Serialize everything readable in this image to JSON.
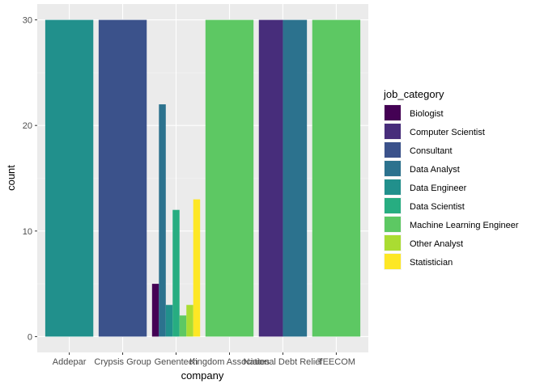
{
  "chart_data": {
    "type": "bar",
    "position": "dodge",
    "xlabel": "company",
    "ylabel": "count",
    "ylim": [
      0,
      30
    ],
    "yticks": [
      0,
      10,
      20,
      30
    ],
    "categories": [
      "Addepar",
      "Crypsis Group",
      "Genentech",
      "Kingdom Associates",
      "National Debt Relief",
      "TEECOM"
    ],
    "legend": {
      "title": "job_category",
      "placement": "right",
      "entries": [
        {
          "name": "Biologist",
          "color": "#440154"
        },
        {
          "name": "Computer Scientist",
          "color": "#472D7B"
        },
        {
          "name": "Consultant",
          "color": "#3B528B"
        },
        {
          "name": "Data Analyst",
          "color": "#2C728E"
        },
        {
          "name": "Data Engineer",
          "color": "#21908C"
        },
        {
          "name": "Data Scientist",
          "color": "#27AD81"
        },
        {
          "name": "Machine Learning Engineer",
          "color": "#5DC863"
        },
        {
          "name": "Other Analyst",
          "color": "#AADC32"
        },
        {
          "name": "Statistician",
          "color": "#FDE725"
        }
      ]
    },
    "bars": [
      {
        "company": "Addepar",
        "job_category": "Data Engineer",
        "count": 30
      },
      {
        "company": "Crypsis Group",
        "job_category": "Consultant",
        "count": 30
      },
      {
        "company": "Genentech",
        "job_category": "Biologist",
        "count": 5
      },
      {
        "company": "Genentech",
        "job_category": "Data Analyst",
        "count": 22
      },
      {
        "company": "Genentech",
        "job_category": "Data Engineer",
        "count": 3
      },
      {
        "company": "Genentech",
        "job_category": "Data Scientist",
        "count": 12
      },
      {
        "company": "Genentech",
        "job_category": "Machine Learning Engineer",
        "count": 2
      },
      {
        "company": "Genentech",
        "job_category": "Other Analyst",
        "count": 3
      },
      {
        "company": "Genentech",
        "job_category": "Statistician",
        "count": 13
      },
      {
        "company": "Kingdom Associates",
        "job_category": "Machine Learning Engineer",
        "count": 30
      },
      {
        "company": "National Debt Relief",
        "job_category": "Computer Scientist",
        "count": 30
      },
      {
        "company": "National Debt Relief",
        "job_category": "Data Analyst",
        "count": 30
      },
      {
        "company": "TEECOM",
        "job_category": "Machine Learning Engineer",
        "count": 30
      }
    ],
    "colors": {
      "panel": "#EBEBEB",
      "grid_major": "#FFFFFF",
      "grid_minor": "#F5F5F5"
    },
    "grid": true
  }
}
